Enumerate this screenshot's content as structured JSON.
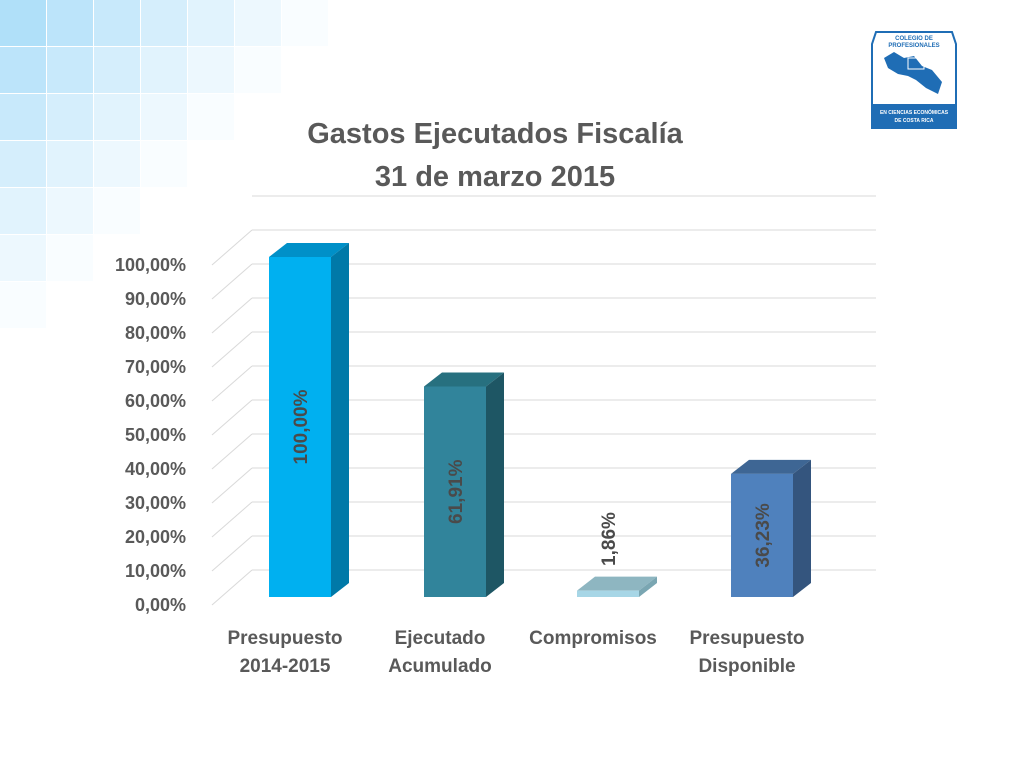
{
  "logo": {
    "top_text": "COLEGIO DE PROFESIONALES",
    "top_line1": "COLEGIO DE",
    "top_line2": "PROFESIONALES",
    "bottom_text": "EN CIENCIAS ECONÓMICAS DE COSTA RICA",
    "bottom_line1": "EN CIENCIAS ECONÓMICAS",
    "bottom_line2": "DE COSTA RICA",
    "color": "#1f6db5"
  },
  "chart_data": {
    "type": "bar",
    "title": "Gastos Ejecutados Fiscalía\n31 de marzo 2015",
    "title_lines": [
      "Gastos Ejecutados Fiscalía",
      "31 de marzo 2015"
    ],
    "categories": [
      [
        "Presupuesto",
        "2014-2015"
      ],
      [
        "Ejecutado",
        "Acumulado"
      ],
      [
        "Compromisos"
      ],
      [
        "Presupuesto",
        "Disponible"
      ]
    ],
    "values": [
      100.0,
      61.91,
      1.86,
      36.23
    ],
    "data_labels": [
      "100,00%",
      "61,91%",
      "1,86%",
      "36,23%"
    ],
    "bar_colors": [
      {
        "front": "#00b0f0",
        "side": "#0079a8",
        "top": "#0090c8"
      },
      {
        "front": "#31849b",
        "side": "#1e5664",
        "top": "#27707f"
      },
      {
        "front": "#a7d6e6",
        "side": "#7aa6b2",
        "top": "#8eb6c1"
      },
      {
        "front": "#4f81bd",
        "side": "#34557e",
        "top": "#3e6694"
      }
    ],
    "y_ticks": [
      "0,00%",
      "10,00%",
      "20,00%",
      "30,00%",
      "40,00%",
      "50,00%",
      "60,00%",
      "70,00%",
      "80,00%",
      "90,00%",
      "100,00%"
    ],
    "ylim": [
      0,
      100
    ],
    "grid": true,
    "three_d": true,
    "xlabel": "",
    "ylabel": ""
  }
}
